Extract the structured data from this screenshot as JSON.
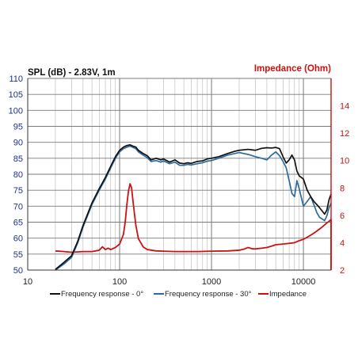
{
  "chart_data": {
    "type": "line",
    "title_left": "SPL (dB) - 2.83V, 1m",
    "title_right": "Impedance (Ohm)",
    "x_scale": "log",
    "xlim": [
      10,
      20000
    ],
    "x_ticks": [
      10,
      100,
      1000,
      10000
    ],
    "x_tick_labels": [
      "10",
      "100",
      "1000",
      "10000"
    ],
    "ylim_left": [
      50,
      110
    ],
    "y_ticks_left": [
      50,
      55,
      60,
      65,
      70,
      75,
      80,
      85,
      90,
      95,
      100,
      105,
      110
    ],
    "y_tick_labels_left": [
      "50",
      "55",
      "60",
      "65",
      "70",
      "75",
      "80",
      "85",
      "90",
      "95",
      "100",
      "105",
      "110"
    ],
    "ylim_right": [
      2,
      16
    ],
    "y_ticks_right": [
      2,
      4,
      6,
      8,
      10,
      12,
      14
    ],
    "y_tick_labels_right": [
      "2",
      "4",
      "6",
      "8",
      "10",
      "12",
      "14"
    ],
    "grid": true,
    "legend_position": "bottom",
    "colors": {
      "left_axis": "#1f2f8f",
      "right_axis": "#cc1111",
      "grid": "#7a7a7a"
    },
    "series": [
      {
        "name": "Frequency response - 0°",
        "axis": "left",
        "color": "#111111",
        "x": [
          20,
          25,
          30,
          35,
          40,
          50,
          60,
          70,
          80,
          90,
          100,
          110,
          120,
          130,
          140,
          150,
          160,
          180,
          200,
          220,
          250,
          280,
          300,
          350,
          400,
          450,
          500,
          550,
          600,
          700,
          800,
          900,
          1000,
          1200,
          1500,
          1800,
          2000,
          2500,
          3000,
          3500,
          4000,
          4500,
          5000,
          5500,
          6000,
          6500,
          7000,
          7500,
          8000,
          8500,
          9000,
          10000,
          11000,
          12000,
          13000,
          14000,
          15000,
          16000,
          17000,
          18000,
          19000,
          20000
        ],
        "y": [
          50.2,
          52.5,
          54.5,
          59,
          64,
          71,
          75.5,
          79,
          82.5,
          85.5,
          87.5,
          88.5,
          89,
          89.2,
          88.8,
          88.5,
          87.5,
          86.5,
          85.8,
          84.5,
          85,
          84.5,
          84.8,
          83.8,
          84.5,
          83.5,
          83.3,
          83.6,
          83.4,
          84,
          84.2,
          84.8,
          85,
          85.5,
          86.5,
          87.2,
          87.5,
          87.8,
          87.5,
          88.1,
          88.3,
          88.2,
          88.4,
          88,
          85.5,
          83.5,
          84.5,
          86,
          84.5,
          81,
          79.5,
          78.5,
          75,
          73,
          71.5,
          70.5,
          69.5,
          68.5,
          67.5,
          68.8,
          72,
          73.8
        ]
      },
      {
        "name": "Frequency response - 30°",
        "axis": "left",
        "color": "#2f6a9c",
        "x": [
          20,
          25,
          30,
          35,
          40,
          50,
          60,
          70,
          80,
          90,
          100,
          110,
          120,
          130,
          140,
          150,
          160,
          180,
          200,
          220,
          250,
          280,
          300,
          350,
          400,
          450,
          500,
          550,
          600,
          700,
          800,
          900,
          1000,
          1200,
          1500,
          1800,
          2000,
          2500,
          3000,
          3500,
          4000,
          4500,
          5000,
          5500,
          6000,
          6500,
          7000,
          7500,
          8000,
          8500,
          9000,
          10000,
          11000,
          12000,
          13000,
          14000,
          15000,
          16000,
          17000,
          18000,
          19000,
          20000
        ],
        "y": [
          50.0,
          52,
          54,
          58.5,
          63.5,
          70.5,
          75,
          78.5,
          82,
          85,
          87,
          88,
          88.5,
          88.8,
          88.4,
          88,
          87,
          86,
          85.2,
          84,
          84.3,
          83.8,
          84.2,
          83.3,
          83.8,
          82.8,
          82.8,
          83.1,
          82.9,
          83.3,
          83.6,
          84.1,
          84.3,
          85,
          86,
          86.5,
          86.8,
          86.2,
          85.5,
          85,
          84.5,
          86,
          87,
          85.8,
          84,
          82,
          78,
          74,
          73,
          78,
          75.5,
          70,
          71.5,
          73,
          70.5,
          68,
          66.5,
          66,
          65.5,
          67,
          69.5,
          71
        ]
      },
      {
        "name": "Impedance",
        "axis": "right",
        "color": "#cc1111",
        "x": [
          20,
          25,
          30,
          40,
          50,
          60,
          65,
          70,
          75,
          80,
          90,
          100,
          110,
          115,
          120,
          125,
          130,
          135,
          140,
          150,
          160,
          180,
          200,
          250,
          300,
          400,
          500,
          700,
          1000,
          1500,
          2000,
          2300,
          2500,
          2800,
          3000,
          3500,
          4000,
          4500,
          5000,
          6000,
          7000,
          8000,
          9000,
          10000,
          11000,
          12000,
          13000,
          14000,
          15000,
          16000,
          17000,
          18000,
          19000,
          20000
        ],
        "y": [
          3.4,
          3.35,
          3.3,
          3.35,
          3.35,
          3.45,
          3.7,
          3.5,
          3.6,
          3.5,
          3.65,
          3.9,
          4.6,
          5.5,
          6.8,
          7.8,
          8.3,
          8.0,
          7.0,
          5.3,
          4.3,
          3.7,
          3.5,
          3.4,
          3.38,
          3.35,
          3.35,
          3.35,
          3.38,
          3.4,
          3.45,
          3.55,
          3.65,
          3.55,
          3.55,
          3.6,
          3.65,
          3.75,
          3.85,
          3.9,
          3.95,
          4.0,
          4.15,
          4.25,
          4.4,
          4.55,
          4.7,
          4.85,
          5.0,
          5.15,
          5.3,
          5.45,
          5.55,
          5.7
        ]
      }
    ]
  }
}
